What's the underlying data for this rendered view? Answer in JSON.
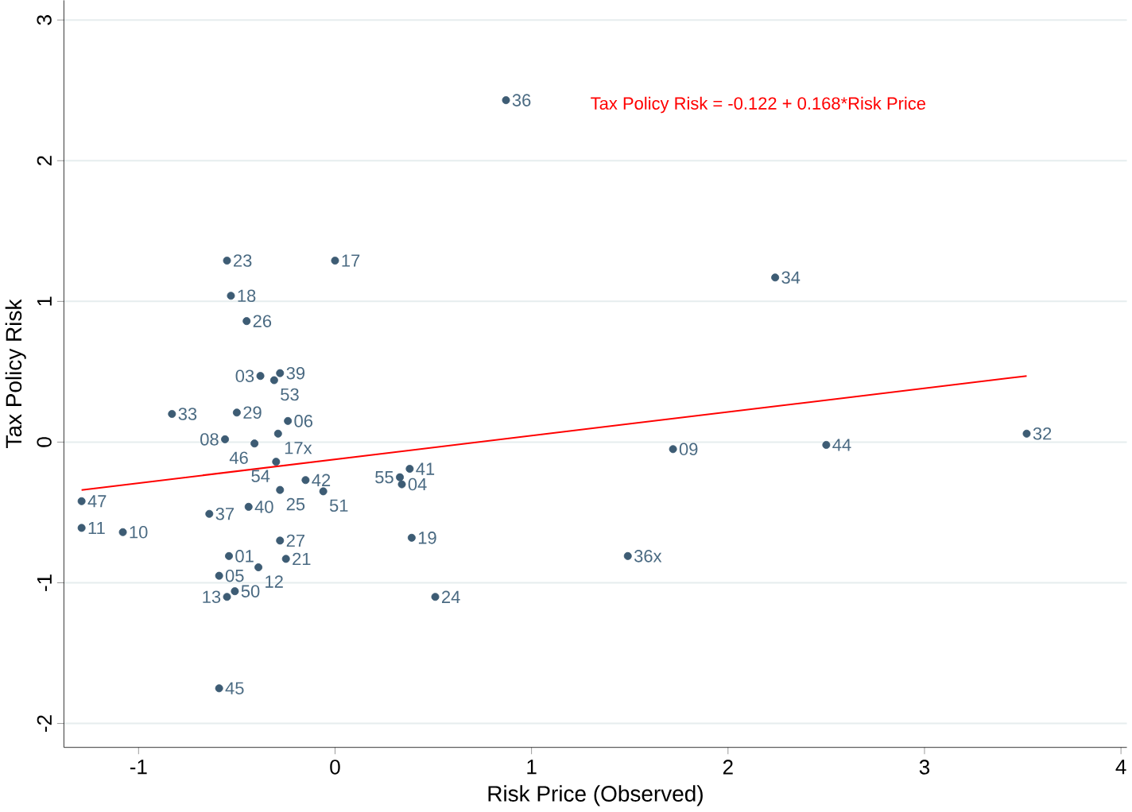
{
  "chart_data": {
    "type": "scatter",
    "xlabel": "Risk Price (Observed)",
    "ylabel": "Tax Policy Risk",
    "xlim": [
      -1.38,
      4.03
    ],
    "ylim": [
      -2.17,
      3.14
    ],
    "xticks": [
      -1,
      0,
      1,
      2,
      3,
      4
    ],
    "yticks": [
      -2,
      -1,
      0,
      1,
      2,
      3
    ],
    "grid": "y",
    "annotations": [
      "Tax Policy Risk = -0.122 + 0.168*Risk Price",
      {
        "text": "36",
        "x": 0.87,
        "y": 2.43
      },
      {
        "text": "17",
        "x": 0.0,
        "y": 1.29
      },
      {
        "text": "23",
        "x": -0.55,
        "y": 1.29
      },
      {
        "text": "18",
        "x": -0.53,
        "y": 1.04
      },
      {
        "text": "26",
        "x": -0.45,
        "y": 0.86
      },
      {
        "text": "34",
        "x": 2.24,
        "y": 1.17
      },
      {
        "text": "03",
        "x": -0.38,
        "y": 0.47
      },
      {
        "text": "53",
        "x": -0.31,
        "y": 0.44
      },
      {
        "text": "39",
        "x": -0.28,
        "y": 0.49
      },
      {
        "text": "33",
        "x": -0.83,
        "y": 0.2
      },
      {
        "text": "29",
        "x": -0.5,
        "y": 0.21
      },
      {
        "text": "06",
        "x": -0.24,
        "y": 0.15
      },
      {
        "text": "08",
        "x": -0.56,
        "y": 0.02
      },
      {
        "text": "46",
        "x": -0.41,
        "y": -0.01
      },
      {
        "text": "17x",
        "x": -0.29,
        "y": 0.06
      },
      {
        "text": "54",
        "x": -0.3,
        "y": -0.14
      },
      {
        "text": "25",
        "x": -0.28,
        "y": -0.34
      },
      {
        "text": "42",
        "x": -0.15,
        "y": -0.27
      },
      {
        "text": "51",
        "x": -0.06,
        "y": -0.35
      },
      {
        "text": "40",
        "x": -0.44,
        "y": -0.46
      },
      {
        "text": "37",
        "x": -0.64,
        "y": -0.51
      },
      {
        "text": "41",
        "x": 0.38,
        "y": -0.19
      },
      {
        "text": "55",
        "x": 0.33,
        "y": -0.25
      },
      {
        "text": "04",
        "x": 0.34,
        "y": -0.3
      },
      {
        "text": "09",
        "x": 1.72,
        "y": -0.05
      },
      {
        "text": "44",
        "x": 2.5,
        "y": -0.02
      },
      {
        "text": "32",
        "x": 3.52,
        "y": 0.06
      },
      {
        "text": "47",
        "x": -1.29,
        "y": -0.42
      },
      {
        "text": "11",
        "x": -1.29,
        "y": -0.61
      },
      {
        "text": "10",
        "x": -1.08,
        "y": -0.64
      },
      {
        "text": "27",
        "x": -0.28,
        "y": -0.7
      },
      {
        "text": "19",
        "x": 0.39,
        "y": -0.68
      },
      {
        "text": "01",
        "x": -0.54,
        "y": -0.81
      },
      {
        "text": "21",
        "x": -0.25,
        "y": -0.83
      },
      {
        "text": "12",
        "x": -0.39,
        "y": -0.89
      },
      {
        "text": "05",
        "x": -0.59,
        "y": -0.95
      },
      {
        "text": "50",
        "x": -0.51,
        "y": -1.06
      },
      {
        "text": "13",
        "x": -0.55,
        "y": -1.1
      },
      {
        "text": "24",
        "x": 0.51,
        "y": -1.1
      },
      {
        "text": "36x",
        "x": 1.49,
        "y": -0.81
      },
      {
        "text": "45",
        "x": -0.59,
        "y": -1.75
      }
    ],
    "series": [
      {
        "color": "#3d5c74",
        "marker": "circle",
        "x": [
          0.87,
          0.0,
          -0.55,
          -0.53,
          -0.45,
          2.24,
          -0.38,
          -0.31,
          -0.28,
          -0.83,
          -0.5,
          -0.24,
          -0.56,
          -0.41,
          -0.29,
          -0.3,
          -0.28,
          -0.15,
          -0.06,
          -0.44,
          -0.64,
          0.38,
          0.33,
          0.34,
          1.72,
          2.5,
          3.52,
          -1.29,
          -1.29,
          -1.08,
          -0.28,
          0.39,
          -0.54,
          -0.25,
          -0.39,
          -0.59,
          -0.51,
          -0.55,
          0.51,
          1.49,
          -0.59
        ],
        "values": [
          2.43,
          1.29,
          1.29,
          1.04,
          0.86,
          1.17,
          0.47,
          0.44,
          0.49,
          0.2,
          0.21,
          0.15,
          0.02,
          -0.01,
          0.06,
          -0.14,
          -0.34,
          -0.27,
          -0.35,
          -0.46,
          -0.51,
          -0.19,
          -0.25,
          -0.3,
          -0.05,
          -0.02,
          0.06,
          -0.42,
          -0.61,
          -0.64,
          -0.7,
          -0.68,
          -0.81,
          -0.83,
          -0.89,
          -0.95,
          -1.06,
          -1.1,
          -1.1,
          -0.81,
          -1.75
        ]
      },
      {
        "type": "line",
        "color": "#ff0000",
        "x": [
          -1.29,
          3.52
        ],
        "values": [
          -0.34,
          0.47
        ],
        "marker": "none",
        "line_style": "solid"
      }
    ]
  }
}
